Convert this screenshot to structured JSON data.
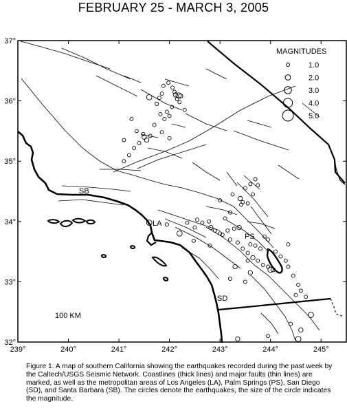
{
  "title": "FEBRUARY 25 - MARCH 3, 2005",
  "axes": {
    "lon_ticks": [
      "239°",
      "240°",
      "241°",
      "242°",
      "243°",
      "244°",
      "245°"
    ],
    "lat_ticks": [
      "37°",
      "36°",
      "35°",
      "34°",
      "33°",
      "32°"
    ]
  },
  "legend": {
    "title": "MAGNITUDES",
    "items": [
      "1.0",
      "2.0",
      "3.0",
      "4.0",
      "5.0"
    ]
  },
  "places": {
    "sb": "SB",
    "la": "LA",
    "ps": "PS",
    "sd": "SD"
  },
  "scale_label": "100 KM",
  "caption": "Figure 1. A map of southern California showing the earthquakes recorded during the past week by the Caltech/USGS Seismic Network. Coastlines (thick lines) and major faults (thin lines) are marked, as well as the metropolitan areas of Los Angeles (LA), Palm Springs (PS), San Diego (SD), and Santa Barbara (SB). The circles denote the earthquakes, the size of the circle indicates the magnitude.",
  "earthquakes": [
    {
      "lon": 241.6,
      "lat": 36.06,
      "mag": 2.0
    },
    {
      "lon": 241.8,
      "lat": 36.05,
      "mag": 1.0
    },
    {
      "lon": 241.85,
      "lat": 36.12,
      "mag": 1.0
    },
    {
      "lon": 241.75,
      "lat": 35.95,
      "mag": 1.0
    },
    {
      "lon": 241.82,
      "lat": 35.78,
      "mag": 1.0
    },
    {
      "lon": 241.9,
      "lat": 35.7,
      "mag": 1.0
    },
    {
      "lon": 242.06,
      "lat": 36.22,
      "mag": 1.0
    },
    {
      "lon": 242.1,
      "lat": 36.15,
      "mag": 1.0
    },
    {
      "lon": 242.12,
      "lat": 36.1,
      "mag": 1.5
    },
    {
      "lon": 242.18,
      "lat": 36.09,
      "mag": 2.0
    },
    {
      "lon": 242.22,
      "lat": 36.08,
      "mag": 1.5
    },
    {
      "lon": 242.15,
      "lat": 36.03,
      "mag": 1.0
    },
    {
      "lon": 242.2,
      "lat": 35.98,
      "mag": 1.0
    },
    {
      "lon": 242.05,
      "lat": 35.9,
      "mag": 1.0
    },
    {
      "lon": 241.95,
      "lat": 35.82,
      "mag": 1.0
    },
    {
      "lon": 242.0,
      "lat": 35.75,
      "mag": 1.0
    },
    {
      "lon": 242.3,
      "lat": 35.85,
      "mag": 1.0
    },
    {
      "lon": 241.88,
      "lat": 36.25,
      "mag": 1.0
    },
    {
      "lon": 241.5,
      "lat": 35.4,
      "mag": 1.5
    },
    {
      "lon": 241.55,
      "lat": 35.35,
      "mag": 1.5
    },
    {
      "lon": 241.48,
      "lat": 35.45,
      "mag": 1.0
    },
    {
      "lon": 241.62,
      "lat": 35.42,
      "mag": 1.0
    },
    {
      "lon": 241.7,
      "lat": 35.6,
      "mag": 1.0
    },
    {
      "lon": 241.35,
      "lat": 35.5,
      "mag": 1.0
    },
    {
      "lon": 241.4,
      "lat": 35.3,
      "mag": 1.0
    },
    {
      "lon": 241.3,
      "lat": 35.22,
      "mag": 1.0
    },
    {
      "lon": 241.2,
      "lat": 35.1,
      "mag": 1.0
    },
    {
      "lon": 241.1,
      "lat": 35.0,
      "mag": 1.0
    },
    {
      "lon": 241.85,
      "lat": 35.48,
      "mag": 1.0
    },
    {
      "lon": 242.0,
      "lat": 35.38,
      "mag": 1.0
    },
    {
      "lon": 241.25,
      "lat": 35.7,
      "mag": 1.0
    },
    {
      "lon": 241.1,
      "lat": 35.35,
      "mag": 1.0
    },
    {
      "lon": 241.98,
      "lat": 36.3,
      "mag": 1.0
    },
    {
      "lon": 241.6,
      "lat": 33.98,
      "mag": 2.0
    },
    {
      "lon": 241.95,
      "lat": 33.95,
      "mag": 1.0
    },
    {
      "lon": 242.35,
      "lat": 33.98,
      "mag": 1.0
    },
    {
      "lon": 242.5,
      "lat": 33.9,
      "mag": 1.0
    },
    {
      "lon": 242.55,
      "lat": 34.03,
      "mag": 1.0
    },
    {
      "lon": 242.65,
      "lat": 33.98,
      "mag": 1.0
    },
    {
      "lon": 242.78,
      "lat": 34.0,
      "mag": 1.0
    },
    {
      "lon": 242.82,
      "lat": 33.9,
      "mag": 1.5
    },
    {
      "lon": 242.9,
      "lat": 33.85,
      "mag": 1.0
    },
    {
      "lon": 243.0,
      "lat": 33.8,
      "mag": 1.0
    },
    {
      "lon": 243.15,
      "lat": 33.85,
      "mag": 1.0
    },
    {
      "lon": 243.28,
      "lat": 33.88,
      "mag": 1.0
    },
    {
      "lon": 243.38,
      "lat": 33.9,
      "mag": 1.5
    },
    {
      "lon": 242.2,
      "lat": 33.8,
      "mag": 2.0
    },
    {
      "lon": 242.48,
      "lat": 33.68,
      "mag": 1.0
    },
    {
      "lon": 243.0,
      "lat": 34.35,
      "mag": 1.0
    },
    {
      "lon": 243.25,
      "lat": 34.45,
      "mag": 1.0
    },
    {
      "lon": 243.4,
      "lat": 34.38,
      "mag": 1.5
    },
    {
      "lon": 243.5,
      "lat": 34.55,
      "mag": 1.0
    },
    {
      "lon": 243.6,
      "lat": 34.62,
      "mag": 1.0
    },
    {
      "lon": 243.7,
      "lat": 34.7,
      "mag": 1.0
    },
    {
      "lon": 243.75,
      "lat": 34.6,
      "mag": 1.0
    },
    {
      "lon": 243.55,
      "lat": 34.3,
      "mag": 1.0
    },
    {
      "lon": 243.65,
      "lat": 34.45,
      "mag": 1.0
    },
    {
      "lon": 243.42,
      "lat": 34.28,
      "mag": 1.0
    },
    {
      "lon": 243.45,
      "lat": 34.32,
      "mag": 1.0
    },
    {
      "lon": 243.2,
      "lat": 34.15,
      "mag": 1.0
    },
    {
      "lon": 243.05,
      "lat": 33.78,
      "mag": 1.0
    },
    {
      "lon": 243.2,
      "lat": 33.7,
      "mag": 1.0
    },
    {
      "lon": 243.35,
      "lat": 33.65,
      "mag": 1.0
    },
    {
      "lon": 243.45,
      "lat": 33.55,
      "mag": 1.0
    },
    {
      "lon": 243.55,
      "lat": 33.48,
      "mag": 1.0
    },
    {
      "lon": 243.65,
      "lat": 33.4,
      "mag": 1.5
    },
    {
      "lon": 243.75,
      "lat": 33.35,
      "mag": 1.0
    },
    {
      "lon": 243.85,
      "lat": 33.28,
      "mag": 1.0
    },
    {
      "lon": 243.95,
      "lat": 33.25,
      "mag": 1.0
    },
    {
      "lon": 244.0,
      "lat": 33.2,
      "mag": 2.0
    },
    {
      "lon": 244.05,
      "lat": 33.2,
      "mag": 1.5
    },
    {
      "lon": 243.8,
      "lat": 33.55,
      "mag": 1.0
    },
    {
      "lon": 243.7,
      "lat": 33.6,
      "mag": 1.0
    },
    {
      "lon": 243.6,
      "lat": 33.62,
      "mag": 1.0
    },
    {
      "lon": 243.88,
      "lat": 33.75,
      "mag": 1.0
    },
    {
      "lon": 243.95,
      "lat": 33.7,
      "mag": 1.0
    },
    {
      "lon": 244.2,
      "lat": 33.42,
      "mag": 1.0
    },
    {
      "lon": 244.3,
      "lat": 33.35,
      "mag": 1.0
    },
    {
      "lon": 244.35,
      "lat": 33.25,
      "mag": 1.0
    },
    {
      "lon": 244.45,
      "lat": 33.1,
      "mag": 1.0
    },
    {
      "lon": 244.55,
      "lat": 32.95,
      "mag": 1.0
    },
    {
      "lon": 244.6,
      "lat": 32.85,
      "mag": 1.0
    },
    {
      "lon": 244.5,
      "lat": 32.78,
      "mag": 1.0
    },
    {
      "lon": 244.7,
      "lat": 32.75,
      "mag": 1.0
    },
    {
      "lon": 244.8,
      "lat": 32.45,
      "mag": 2.0
    },
    {
      "lon": 244.6,
      "lat": 32.2,
      "mag": 1.5
    },
    {
      "lon": 244.55,
      "lat": 32.05,
      "mag": 2.0
    },
    {
      "lon": 244.4,
      "lat": 32.3,
      "mag": 1.0
    },
    {
      "lon": 243.95,
      "lat": 32.1,
      "mag": 1.0
    },
    {
      "lon": 243.35,
      "lat": 32.05,
      "mag": 1.5
    },
    {
      "lon": 243.2,
      "lat": 33.05,
      "mag": 1.0
    },
    {
      "lon": 243.5,
      "lat": 33.0,
      "mag": 1.0
    },
    {
      "lon": 243.6,
      "lat": 33.15,
      "mag": 1.5
    },
    {
      "lon": 243.3,
      "lat": 33.25,
      "mag": 1.5
    },
    {
      "lon": 243.55,
      "lat": 33.35,
      "mag": 1.0
    },
    {
      "lon": 244.35,
      "lat": 33.62,
      "mag": 1.0
    },
    {
      "lon": 244.1,
      "lat": 33.5,
      "mag": 1.0
    },
    {
      "lon": 242.8,
      "lat": 33.6,
      "mag": 1.0
    },
    {
      "lon": 243.1,
      "lat": 34.05,
      "mag": 1.0
    }
  ]
}
